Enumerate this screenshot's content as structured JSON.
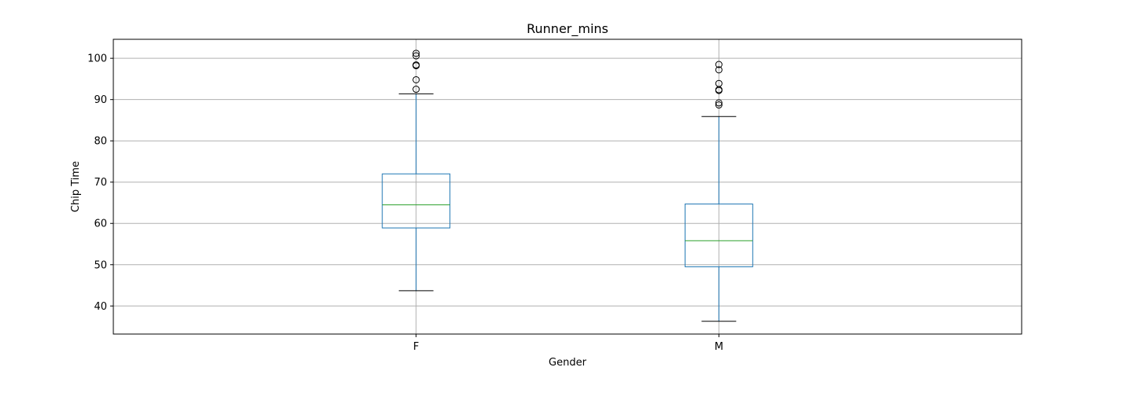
{
  "chart_data": {
    "type": "box",
    "title": "Runner_mins",
    "xlabel": "Gender",
    "ylabel": "Chip Time",
    "ylim": [
      33.2,
      104.6
    ],
    "yticks": [
      40,
      50,
      60,
      70,
      80,
      90,
      100
    ],
    "grid": true,
    "categories": [
      "F",
      "M"
    ],
    "boxes": [
      {
        "category": "F",
        "whisker_low": 43.7,
        "q1": 58.9,
        "median": 64.5,
        "q3": 72.0,
        "whisker_high": 91.4,
        "outliers": [
          92.5,
          94.8,
          98.2,
          98.4,
          100.6,
          101.2
        ]
      },
      {
        "category": "M",
        "whisker_low": 36.3,
        "q1": 49.5,
        "median": 55.8,
        "q3": 64.7,
        "whisker_high": 85.9,
        "outliers": [
          88.7,
          89.2,
          92.2,
          92.4,
          93.9,
          97.2,
          98.5
        ]
      }
    ],
    "colors": {
      "box": "#1f77b4",
      "median": "#2ca02c",
      "cap": "#000000",
      "outlier": "#000000",
      "grid": "#b0b0b0"
    }
  }
}
